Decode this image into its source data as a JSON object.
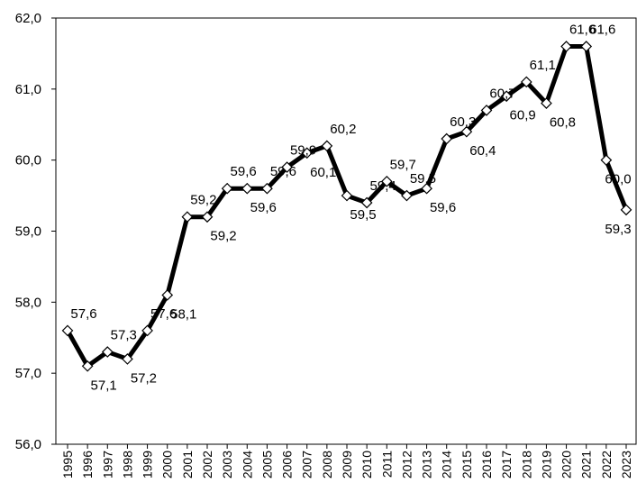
{
  "chart_data": {
    "type": "line",
    "title": "",
    "xlabel": "",
    "ylabel": "",
    "ylim": [
      56.0,
      62.0
    ],
    "yticks": [
      "56,0",
      "57,0",
      "58,0",
      "59,0",
      "60,0",
      "61,0",
      "62,0"
    ],
    "categories": [
      "1995",
      "1996",
      "1997",
      "1998",
      "1999",
      "2000",
      "2001",
      "2002",
      "2003",
      "2004",
      "2005",
      "2006",
      "2007",
      "2008",
      "2009",
      "2010",
      "2011",
      "2012",
      "2013",
      "2014",
      "2015",
      "2016",
      "2017",
      "2018",
      "2019",
      "2020",
      "2021",
      "2022",
      "2023"
    ],
    "values": [
      57.6,
      57.1,
      57.3,
      57.2,
      57.6,
      58.1,
      59.2,
      59.2,
      59.6,
      59.6,
      59.6,
      59.9,
      60.1,
      60.2,
      59.5,
      59.4,
      59.7,
      59.5,
      59.6,
      60.3,
      60.4,
      60.7,
      60.9,
      61.1,
      60.8,
      61.6,
      61.6,
      60.0,
      59.3
    ],
    "labels": [
      "57,6",
      "57,1",
      "57,3",
      "57,2",
      "57,6",
      "58,1",
      "59,2",
      "59,2",
      "59,6",
      "59,6",
      "59,6",
      "59,9",
      "60,1",
      "60,2",
      "59,5",
      "59,4",
      "59,7",
      "59,5",
      "59,6",
      "60,3",
      "60,4",
      "60,7",
      "60,9",
      "61,1",
      "60,8",
      "61,6",
      "61,6",
      "60,0",
      "59,3"
    ],
    "grid": false,
    "legend": "none",
    "line_color": "#000000",
    "marker": "diamond",
    "marker_fill": "#ffffff"
  }
}
